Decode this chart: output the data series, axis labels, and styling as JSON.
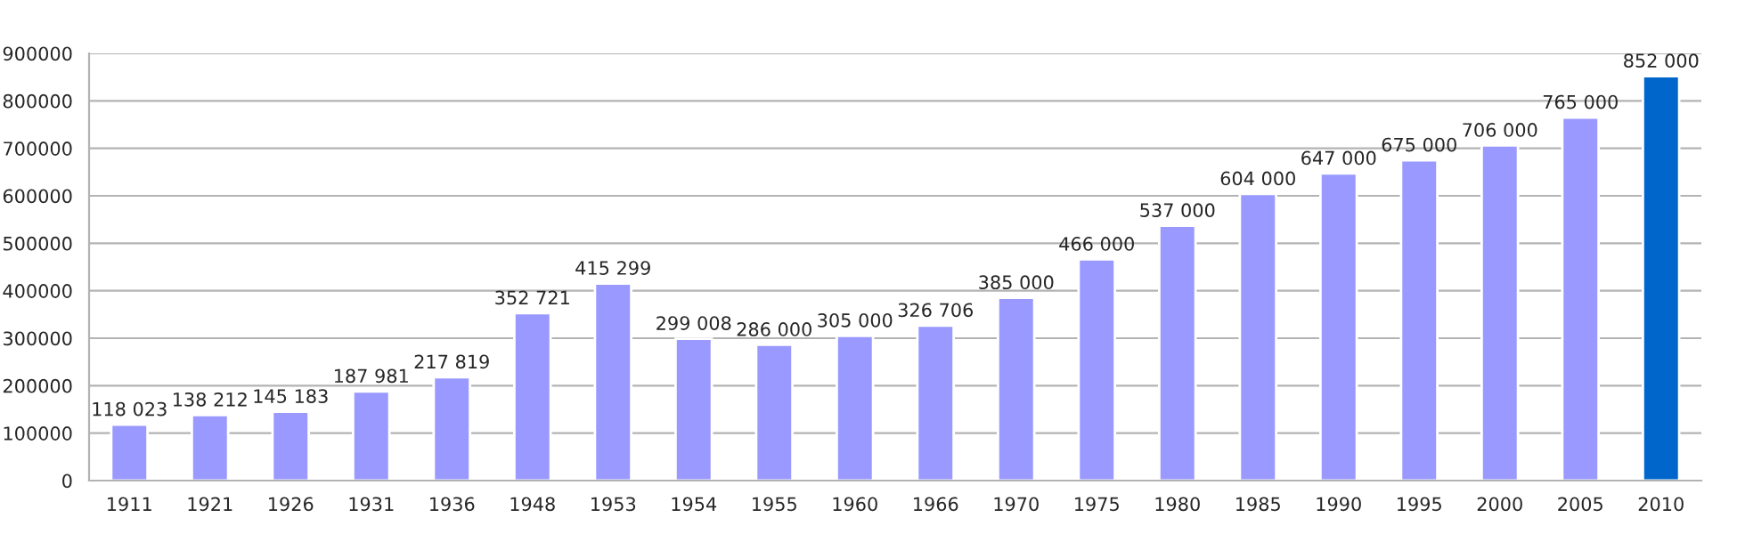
{
  "chart_data": {
    "type": "bar",
    "categories": [
      "1911",
      "1921",
      "1926",
      "1931",
      "1936",
      "1948",
      "1953",
      "1954",
      "1955",
      "1960",
      "1966",
      "1970",
      "1975",
      "1980",
      "1985",
      "1990",
      "1995",
      "2000",
      "2005",
      "2010"
    ],
    "values": [
      118023,
      138212,
      145183,
      187981,
      217819,
      352721,
      415299,
      299008,
      286000,
      305000,
      326706,
      385000,
      466000,
      537000,
      604000,
      647000,
      675000,
      706000,
      765000,
      852000
    ],
    "value_labels": [
      "118 023",
      "138 212",
      "145 183",
      "187 981",
      "217 819",
      "352 721",
      "415 299",
      "299 008",
      "286 000",
      "305 000",
      "326 706",
      "385 000",
      "466 000",
      "537 000",
      "604 000",
      "647 000",
      "675 000",
      "706 000",
      "765 000",
      "852 000"
    ],
    "colors": [
      "#9999ff",
      "#9999ff",
      "#9999ff",
      "#9999ff",
      "#9999ff",
      "#9999ff",
      "#9999ff",
      "#9999ff",
      "#9999ff",
      "#9999ff",
      "#9999ff",
      "#9999ff",
      "#9999ff",
      "#9999ff",
      "#9999ff",
      "#9999ff",
      "#9999ff",
      "#9999ff",
      "#9999ff",
      "#0066cc"
    ],
    "ylim": [
      0,
      900000
    ],
    "yticks": [
      0,
      100000,
      200000,
      300000,
      400000,
      500000,
      600000,
      700000,
      800000,
      900000
    ],
    "grid": "y",
    "legend": false
  }
}
